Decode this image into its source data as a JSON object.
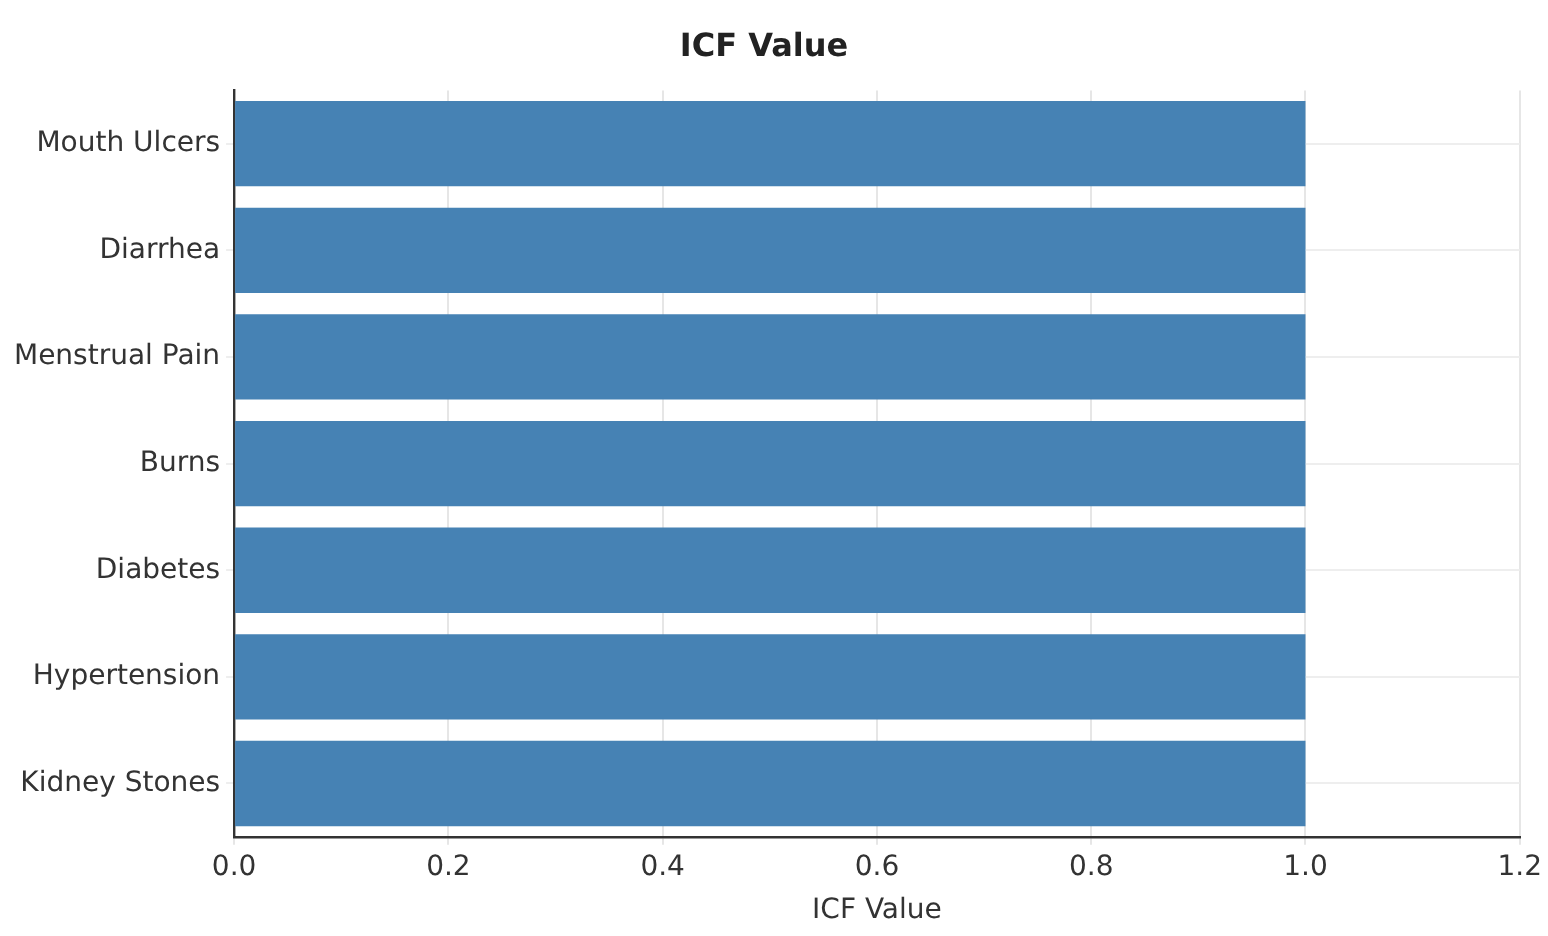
{
  "chart_data": {
    "type": "bar",
    "orientation": "horizontal",
    "title": "ICF Value",
    "xlabel": "ICF Value",
    "categories": [
      "Mouth Ulcers",
      "Diarrhea",
      "Menstrual Pain",
      "Burns",
      "Diabetes",
      "Hypertension",
      "Kidney Stones"
    ],
    "values": [
      1.0,
      1.0,
      1.0,
      1.0,
      1.0,
      1.0,
      1.0
    ],
    "color": "#4682b4",
    "xlim": [
      0,
      1.2
    ],
    "xticks": [
      {
        "value": 0,
        "label": "0.0"
      },
      {
        "value": 0.2,
        "label": "0.2"
      },
      {
        "value": 0.4,
        "label": "0.4"
      },
      {
        "value": 0.6,
        "label": "0.6"
      },
      {
        "value": 0.8,
        "label": "0.8"
      },
      {
        "value": 1.0,
        "label": "1.0"
      },
      {
        "value": 1.2,
        "label": "1.2"
      }
    ],
    "grid": true
  }
}
